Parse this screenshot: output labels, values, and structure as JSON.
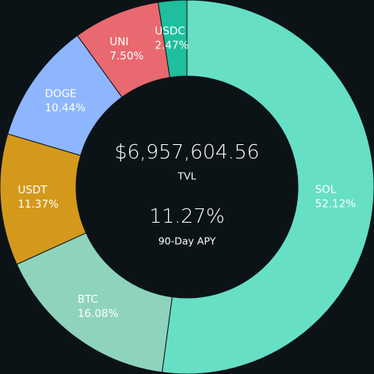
{
  "chart_data": {
    "type": "donut",
    "categories": [
      "SOL",
      "BTC",
      "USDT",
      "DOGE",
      "UNI",
      "USDC"
    ],
    "values": [
      52.12,
      16.08,
      11.37,
      10.44,
      7.5,
      2.47
    ],
    "value_labels": [
      "52.12%",
      "16.08%",
      "11.37%",
      "10.44%",
      "7.50%",
      "2.47%"
    ],
    "colors": [
      "#66dfc5",
      "#8fd3bd",
      "#d4991b",
      "#8db6ff",
      "#e8696f",
      "#1ebf9e"
    ],
    "annotations": [
      {
        "text": "$6,957,604.56"
      },
      {
        "text": "TVL"
      },
      {
        "text": "11.27%"
      },
      {
        "text": "90-Day APY"
      }
    ]
  }
}
